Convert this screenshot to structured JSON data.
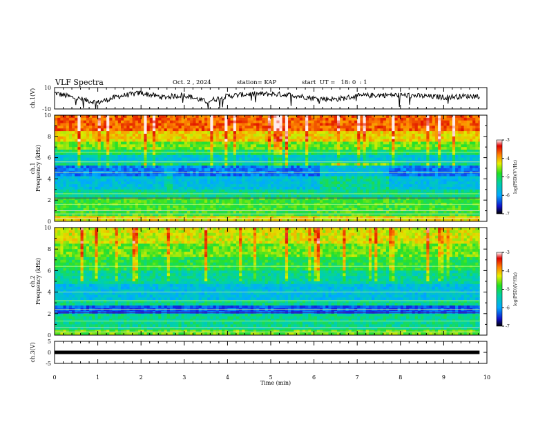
{
  "header": {
    "title": "VLF Spectra",
    "date": "Oct. 2 , 2024",
    "station": "station= KAP",
    "start": "start  UT =   18: 0  : 1"
  },
  "chart_data": [
    {
      "type": "line",
      "panel": "ch1-voltage",
      "ylabel": "ch.1(V)",
      "ylim": [
        -10,
        10
      ],
      "y_ticks": [
        "10",
        "-10"
      ],
      "xlim": [
        0,
        10
      ],
      "x_end": 9.83,
      "series": [
        {
          "x": [
            0,
            0.5,
            1,
            1.5,
            2,
            2.5,
            3,
            3.5,
            4,
            4.5,
            5,
            5.5,
            6,
            6.5,
            7,
            7.5,
            8,
            8.5,
            9,
            9.5,
            9.83
          ],
          "values": [
            5,
            0,
            -4,
            2,
            5,
            1,
            3,
            -3,
            2,
            4,
            4,
            3,
            0,
            -1,
            2,
            3,
            3,
            2,
            1,
            2,
            2
          ]
        }
      ]
    },
    {
      "type": "heatmap",
      "panel": "ch1-spectrogram",
      "ylabel": "ch.1",
      "ylabel2": "Frequency (kHz)",
      "ylim": [
        0,
        10
      ],
      "y_ticks": [
        "0",
        "2",
        "4",
        "6",
        "8",
        "10"
      ],
      "xlim": [
        0,
        10
      ],
      "colorbar": {
        "label": "log(PSD)(V²/Hz)",
        "ticks": [
          "-3",
          "-4",
          "-5",
          "-6",
          "-7"
        ],
        "range": [
          -7,
          -3
        ]
      }
    },
    {
      "type": "heatmap",
      "panel": "ch2-spectrogram",
      "ylabel": "ch.2",
      "ylabel2": "Frequency (kHz)",
      "ylim": [
        0,
        10
      ],
      "y_ticks": [
        "0",
        "2",
        "4",
        "6",
        "8",
        "10"
      ],
      "xlim": [
        0,
        10
      ],
      "colorbar": {
        "label": "log(PSD)(V²/Hz)",
        "ticks": [
          "-3",
          "-4",
          "-5",
          "-6",
          "-7"
        ],
        "range": [
          -7,
          -3
        ]
      }
    },
    {
      "type": "line",
      "panel": "ch3-voltage",
      "ylabel": "ch.3(V)",
      "ylim": [
        -5,
        5
      ],
      "y_ticks": [
        "5",
        "0",
        "-5"
      ],
      "xlim": [
        0,
        10
      ],
      "x_end": 9.83,
      "series": [
        {
          "x": [
            0,
            9.83
          ],
          "values": [
            0,
            0
          ]
        }
      ]
    }
  ],
  "xaxis": {
    "label": "Time (min)",
    "ticks": [
      "0",
      "1",
      "2",
      "3",
      "4",
      "5",
      "6",
      "7",
      "8",
      "9",
      "10"
    ]
  }
}
